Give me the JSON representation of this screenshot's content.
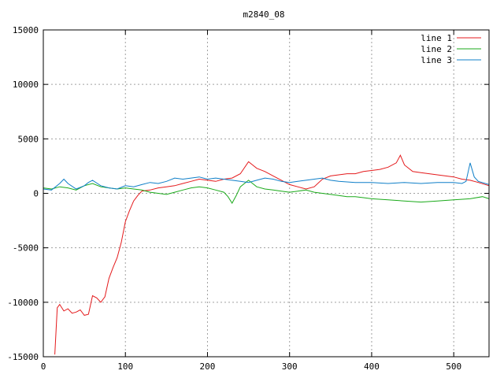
{
  "chart_data": {
    "type": "line",
    "title": "m2840_08",
    "xlabel": "",
    "ylabel": "",
    "xlim": [
      0,
      543
    ],
    "ylim": [
      -15000,
      15000
    ],
    "x_ticks": [
      0,
      100,
      200,
      300,
      400,
      500
    ],
    "y_ticks": [
      -15000,
      -10000,
      -5000,
      0,
      5000,
      10000,
      15000
    ],
    "x_tick_labels": [
      "0",
      "100",
      "200",
      "300",
      "400",
      "500"
    ],
    "y_tick_labels": [
      "-15000",
      "-10000",
      "-5000",
      "0",
      "5000",
      "10000",
      "15000"
    ],
    "grid": true,
    "legend_position": "top-right",
    "series": [
      {
        "name": "line 1",
        "color": "#e41a1c",
        "x": [
          14,
          17,
          20,
          25,
          30,
          35,
          40,
          45,
          50,
          55,
          60,
          65,
          70,
          75,
          80,
          85,
          90,
          95,
          100,
          105,
          110,
          115,
          120,
          130,
          140,
          150,
          160,
          170,
          180,
          190,
          200,
          210,
          220,
          230,
          240,
          250,
          255,
          260,
          270,
          280,
          290,
          300,
          310,
          320,
          330,
          340,
          350,
          360,
          370,
          380,
          390,
          400,
          410,
          420,
          430,
          435,
          440,
          450,
          460,
          470,
          480,
          490,
          500,
          510,
          520,
          530,
          543
        ],
        "y": [
          -14800,
          -10500,
          -10200,
          -10800,
          -10600,
          -11000,
          -10900,
          -10700,
          -11200,
          -11100,
          -9400,
          -9600,
          -10000,
          -9500,
          -7800,
          -6800,
          -5900,
          -4500,
          -2600,
          -1600,
          -700,
          -200,
          200,
          300,
          500,
          600,
          700,
          900,
          1100,
          1300,
          1200,
          1100,
          1300,
          1400,
          1800,
          2900,
          2600,
          2300,
          2000,
          1600,
          1200,
          800,
          600,
          400,
          600,
          1300,
          1600,
          1700,
          1800,
          1800,
          2000,
          2100,
          2200,
          2400,
          2800,
          3500,
          2600,
          2000,
          1900,
          1800,
          1700,
          1600,
          1500,
          1300,
          1200,
          1000,
          700
        ]
      },
      {
        "name": "line 2",
        "color": "#1aaa1a",
        "x": [
          0,
          10,
          20,
          30,
          40,
          50,
          60,
          70,
          80,
          90,
          100,
          110,
          120,
          130,
          140,
          150,
          160,
          170,
          180,
          190,
          200,
          210,
          220,
          225,
          230,
          235,
          240,
          245,
          250,
          260,
          270,
          280,
          290,
          300,
          310,
          320,
          330,
          340,
          350,
          360,
          370,
          380,
          390,
          400,
          420,
          440,
          460,
          480,
          500,
          520,
          535,
          543
        ],
        "y": [
          500,
          400,
          600,
          500,
          300,
          700,
          900,
          600,
          500,
          400,
          500,
          400,
          300,
          100,
          0,
          -100,
          100,
          300,
          500,
          600,
          500,
          300,
          100,
          -300,
          -900,
          -200,
          600,
          900,
          1200,
          600,
          400,
          300,
          200,
          100,
          200,
          300,
          100,
          0,
          -100,
          -200,
          -300,
          -300,
          -400,
          -500,
          -600,
          -700,
          -800,
          -700,
          -600,
          -500,
          -300,
          -500
        ]
      },
      {
        "name": "line 3",
        "color": "#0f7fc8",
        "x": [
          0,
          10,
          20,
          25,
          30,
          40,
          50,
          55,
          60,
          70,
          80,
          90,
          100,
          110,
          120,
          130,
          140,
          150,
          160,
          170,
          180,
          190,
          200,
          210,
          220,
          230,
          240,
          250,
          260,
          270,
          280,
          290,
          300,
          310,
          320,
          330,
          340,
          350,
          360,
          380,
          400,
          420,
          440,
          460,
          480,
          500,
          510,
          515,
          520,
          525,
          530,
          543
        ],
        "y": [
          400,
          300,
          900,
          1300,
          900,
          400,
          700,
          1000,
          1200,
          700,
          500,
          400,
          700,
          600,
          800,
          1000,
          900,
          1100,
          1400,
          1300,
          1400,
          1500,
          1300,
          1400,
          1300,
          1200,
          1100,
          1000,
          1200,
          1400,
          1300,
          1100,
          1000,
          1100,
          1200,
          1300,
          1400,
          1200,
          1100,
          1000,
          1000,
          900,
          1000,
          900,
          1000,
          1000,
          900,
          1100,
          2800,
          1500,
          1100,
          800
        ]
      }
    ]
  }
}
